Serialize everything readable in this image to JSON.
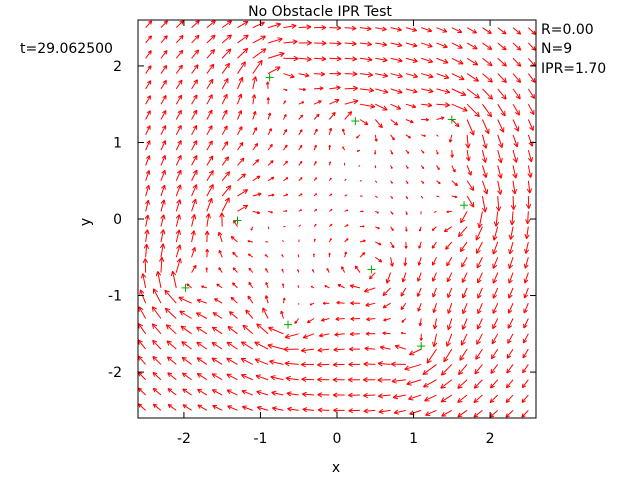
{
  "chart_data": {
    "type": "vector-field",
    "title": "No Obstacle IPR Test",
    "xlabel": "x",
    "ylabel": "y",
    "xlim": [
      -2.6,
      2.6
    ],
    "ylim": [
      -2.6,
      2.6
    ],
    "xticks": [
      -2,
      -1,
      0,
      1,
      2
    ],
    "yticks": [
      -2,
      -1,
      0,
      1,
      2
    ],
    "grid": false,
    "time_label": "t=29.062500",
    "info": [
      "R=0.00",
      "N=9",
      "IPR=1.70"
    ],
    "arrow_color": "#ff0000",
    "marker_color": "#00aa00",
    "vortices": [
      {
        "x": -0.88,
        "y": 1.85,
        "s": 1
      },
      {
        "x": 0.24,
        "y": 1.28,
        "s": 1
      },
      {
        "x": 1.5,
        "y": 1.3,
        "s": 1
      },
      {
        "x": -1.3,
        "y": -0.02,
        "s": 1
      },
      {
        "x": 1.66,
        "y": 0.18,
        "s": 1
      },
      {
        "x": 0.45,
        "y": -0.66,
        "s": 1
      },
      {
        "x": -1.98,
        "y": -0.9,
        "s": 1
      },
      {
        "x": -0.64,
        "y": -1.38,
        "s": 1
      },
      {
        "x": 1.1,
        "y": -1.66,
        "s": 1
      }
    ]
  }
}
